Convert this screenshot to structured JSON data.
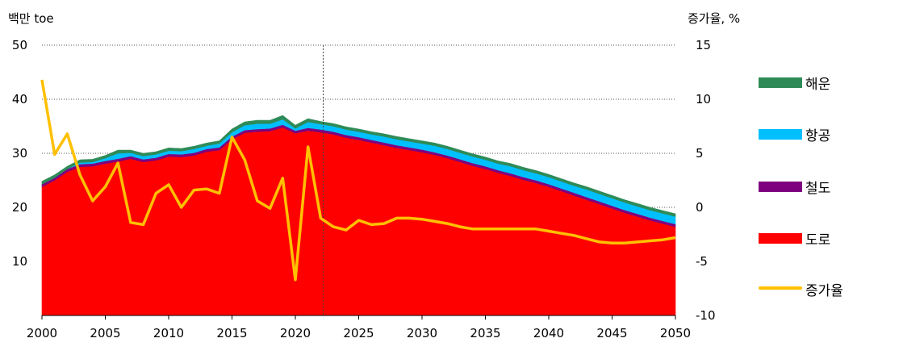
{
  "chart_data": {
    "type": "area",
    "left_axis_title": "백만 toe",
    "right_axis_title": "증가율, %",
    "x": [
      2000,
      2001,
      2002,
      2003,
      2004,
      2005,
      2006,
      2007,
      2008,
      2009,
      2010,
      2011,
      2012,
      2013,
      2014,
      2015,
      2016,
      2017,
      2018,
      2019,
      2020,
      2021,
      2022,
      2023,
      2024,
      2025,
      2026,
      2027,
      2028,
      2029,
      2030,
      2031,
      2032,
      2033,
      2034,
      2035,
      2036,
      2037,
      2038,
      2039,
      2040,
      2041,
      2042,
      2043,
      2044,
      2045,
      2046,
      2047,
      2048,
      2049,
      2050
    ],
    "x_ticks": [
      2000,
      2005,
      2010,
      2015,
      2020,
      2025,
      2030,
      2035,
      2040,
      2045,
      2050
    ],
    "xlim": [
      2000,
      2050
    ],
    "ylim_left": [
      0,
      50
    ],
    "yticks_left": [
      10,
      20,
      30,
      40,
      50
    ],
    "ylim_right": [
      -10,
      15
    ],
    "yticks_right": [
      -10,
      -5,
      0,
      5,
      10,
      15
    ],
    "gridlines": "dotted horizontal",
    "vertical_marker_x": 2022.2,
    "legend_position": "right",
    "stacked_series": [
      {
        "name": "도로",
        "color": "#ff0000",
        "values": [
          23.8,
          25.0,
          26.6,
          27.5,
          27.6,
          28.1,
          28.5,
          29.0,
          28.4,
          28.7,
          29.4,
          29.3,
          29.6,
          30.3,
          30.6,
          32.6,
          33.8,
          34.0,
          34.1,
          34.8,
          33.7,
          34.2,
          33.9,
          33.5,
          32.9,
          32.5,
          32.0,
          31.5,
          31.0,
          30.6,
          30.2,
          29.7,
          29.1,
          28.4,
          27.7,
          27.1,
          26.4,
          25.8,
          25.1,
          24.5,
          23.8,
          23.0,
          22.2,
          21.4,
          20.6,
          19.8,
          19.0,
          18.3,
          17.6,
          17.0,
          16.4
        ]
      },
      {
        "name": "철도",
        "color": "#7f007f",
        "values": [
          0.5,
          0.5,
          0.5,
          0.5,
          0.5,
          0.5,
          0.5,
          0.5,
          0.5,
          0.5,
          0.5,
          0.5,
          0.5,
          0.5,
          0.5,
          0.5,
          0.5,
          0.5,
          0.5,
          0.5,
          0.5,
          0.5,
          0.5,
          0.5,
          0.5,
          0.5,
          0.5,
          0.5,
          0.5,
          0.5,
          0.5,
          0.5,
          0.5,
          0.5,
          0.5,
          0.5,
          0.5,
          0.5,
          0.5,
          0.5,
          0.5,
          0.5,
          0.5,
          0.5,
          0.5,
          0.5,
          0.5,
          0.5,
          0.5,
          0.5,
          0.5
        ]
      },
      {
        "name": "항공",
        "color": "#00bfff",
        "values": [
          0.0,
          0.0,
          0.0,
          0.3,
          0.3,
          0.5,
          1.0,
          0.6,
          0.6,
          0.6,
          0.6,
          0.6,
          0.7,
          0.6,
          0.7,
          0.8,
          0.9,
          1.0,
          0.9,
          1.0,
          0.4,
          1.1,
          1.0,
          1.0,
          1.0,
          1.0,
          1.0,
          1.1,
          1.1,
          1.1,
          1.1,
          1.2,
          1.2,
          1.2,
          1.2,
          1.2,
          1.2,
          1.3,
          1.3,
          1.3,
          1.3,
          1.3,
          1.3,
          1.4,
          1.4,
          1.4,
          1.4,
          1.4,
          1.4,
          1.4,
          1.4
        ]
      },
      {
        "name": "해운",
        "color": "#2e8b57",
        "values": [
          0.5,
          0.5,
          0.5,
          0.5,
          0.5,
          0.5,
          0.6,
          0.5,
          0.5,
          0.5,
          0.5,
          0.5,
          0.5,
          0.5,
          0.5,
          0.6,
          0.6,
          0.6,
          0.6,
          0.7,
          0.6,
          0.6,
          0.5,
          0.5,
          0.5,
          0.5,
          0.5,
          0.5,
          0.5,
          0.5,
          0.5,
          0.5,
          0.5,
          0.5,
          0.5,
          0.5,
          0.5,
          0.5,
          0.5,
          0.5,
          0.5,
          0.5,
          0.5,
          0.5,
          0.5,
          0.5,
          0.5,
          0.5,
          0.5,
          0.5,
          0.5
        ]
      }
    ],
    "line_series": {
      "name": "증가율",
      "color": "#ffc000",
      "axis": "right",
      "values": [
        11.8,
        4.9,
        6.8,
        3.0,
        0.6,
        1.9,
        4.1,
        -1.4,
        -1.6,
        1.3,
        2.1,
        0.0,
        1.6,
        1.7,
        1.3,
        6.5,
        4.4,
        0.6,
        -0.1,
        2.7,
        -6.7,
        5.6,
        -1.0,
        -1.8,
        -2.1,
        -1.2,
        -1.6,
        -1.5,
        -1.0,
        -1.0,
        -1.1,
        -1.3,
        -1.5,
        -1.8,
        -2.0,
        -2.0,
        -2.0,
        -2.0,
        -2.0,
        -2.0,
        -2.2,
        -2.4,
        -2.6,
        -2.9,
        -3.2,
        -3.3,
        -3.3,
        -3.2,
        -3.1,
        -3.0,
        -2.8
      ]
    },
    "legend_order": [
      "해운",
      "항공",
      "철도",
      "도로",
      "증가율"
    ]
  }
}
